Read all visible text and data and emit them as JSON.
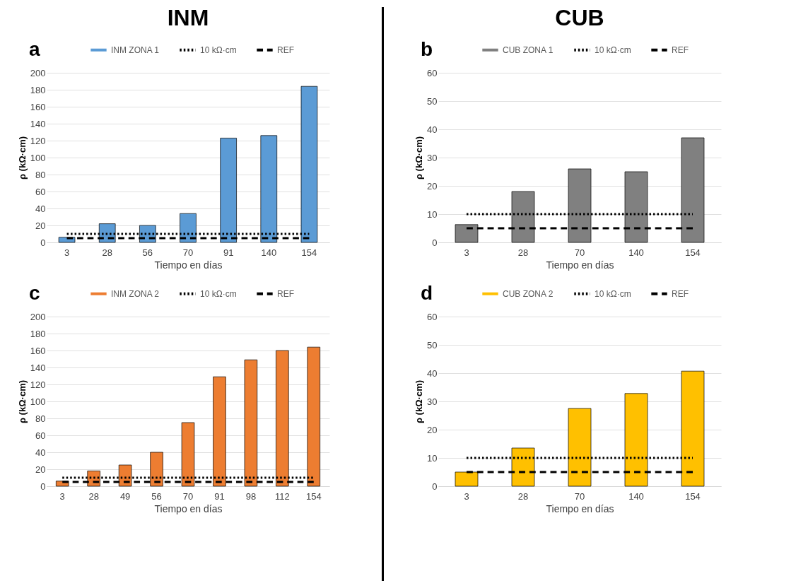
{
  "chart_data": [
    {
      "type": "bar",
      "title": "INM",
      "annotations": [
        "a"
      ],
      "xlabel": "Tiempo en días",
      "ylabel": "ρ (kΩ·cm)",
      "categories": [
        "3",
        "28",
        "56",
        "70",
        "91",
        "140",
        "154"
      ],
      "series": [
        {
          "name": "INM ZONA 1",
          "color": "#5b9bd5",
          "values": [
            6,
            22,
            20,
            34,
            123,
            126,
            184
          ]
        },
        {
          "name": "10 kΩ·cm",
          "type": "line",
          "color": "#000000",
          "line_style": "dotted",
          "values": [
            10,
            10,
            10,
            10,
            10,
            10,
            10
          ]
        },
        {
          "name": "REF",
          "type": "line",
          "color": "#000000",
          "line_style": "dashed",
          "values": [
            5,
            5,
            5,
            5,
            5,
            5,
            5
          ]
        }
      ],
      "ylim": [
        0,
        200
      ],
      "yticks": [
        0,
        20,
        40,
        60,
        80,
        100,
        120,
        140,
        160,
        180,
        200
      ],
      "grid": "y",
      "legend": "top"
    },
    {
      "type": "bar",
      "title": "CUB",
      "annotations": [
        "b"
      ],
      "xlabel": "Tiempo en días",
      "ylabel": "ρ (kΩ·cm)",
      "categories": [
        "3",
        "28",
        "70",
        "140",
        "154"
      ],
      "series": [
        {
          "name": "CUB ZONA 1",
          "color": "#808080",
          "values": [
            6.3,
            18,
            26,
            25,
            37
          ]
        },
        {
          "name": "10 kΩ·cm",
          "type": "line",
          "color": "#000000",
          "line_style": "dotted",
          "values": [
            10,
            10,
            10,
            10,
            10
          ]
        },
        {
          "name": "REF",
          "type": "line",
          "color": "#000000",
          "line_style": "dashed",
          "values": [
            5,
            5,
            5,
            5,
            5
          ]
        }
      ],
      "ylim": [
        0,
        60
      ],
      "yticks": [
        0,
        10,
        20,
        30,
        40,
        50,
        60
      ],
      "grid": "y",
      "legend": "top"
    },
    {
      "type": "bar",
      "annotations": [
        "c"
      ],
      "xlabel": "Tiempo en días",
      "ylabel": "ρ (kΩ·cm)",
      "categories": [
        "3",
        "28",
        "49",
        "56",
        "70",
        "91",
        "98",
        "112",
        "154"
      ],
      "series": [
        {
          "name": "INM ZONA 2",
          "color": "#ed7d31",
          "values": [
            6,
            18,
            25,
            40,
            75,
            129,
            149,
            160,
            164
          ]
        },
        {
          "name": "10 kΩ·cm",
          "type": "line",
          "color": "#000000",
          "line_style": "dotted",
          "values": [
            10,
            10,
            10,
            10,
            10,
            10,
            10,
            10,
            10
          ]
        },
        {
          "name": "REF",
          "type": "line",
          "color": "#000000",
          "line_style": "dashed",
          "values": [
            5,
            5,
            5,
            5,
            5,
            5,
            5,
            5,
            5
          ]
        }
      ],
      "ylim": [
        0,
        200
      ],
      "yticks": [
        0,
        20,
        40,
        60,
        80,
        100,
        120,
        140,
        160,
        180,
        200
      ],
      "grid": "y",
      "legend": "top"
    },
    {
      "type": "bar",
      "annotations": [
        "d"
      ],
      "xlabel": "Tiempo en días",
      "ylabel": "ρ (kΩ·cm)",
      "categories": [
        "3",
        "28",
        "70",
        "140",
        "154"
      ],
      "series": [
        {
          "name": "CUB ZONA 2",
          "color": "#ffc000",
          "values": [
            5,
            13.5,
            27.5,
            32.8,
            40.7
          ]
        },
        {
          "name": "10 kΩ·cm",
          "type": "line",
          "color": "#000000",
          "line_style": "dotted",
          "values": [
            10,
            10,
            10,
            10,
            10
          ]
        },
        {
          "name": "REF",
          "type": "line",
          "color": "#000000",
          "line_style": "dashed",
          "values": [
            5,
            5,
            5,
            5,
            5
          ]
        }
      ],
      "ylim": [
        0,
        60
      ],
      "yticks": [
        0,
        10,
        20,
        30,
        40,
        50,
        60
      ],
      "grid": "y",
      "legend": "top"
    }
  ]
}
